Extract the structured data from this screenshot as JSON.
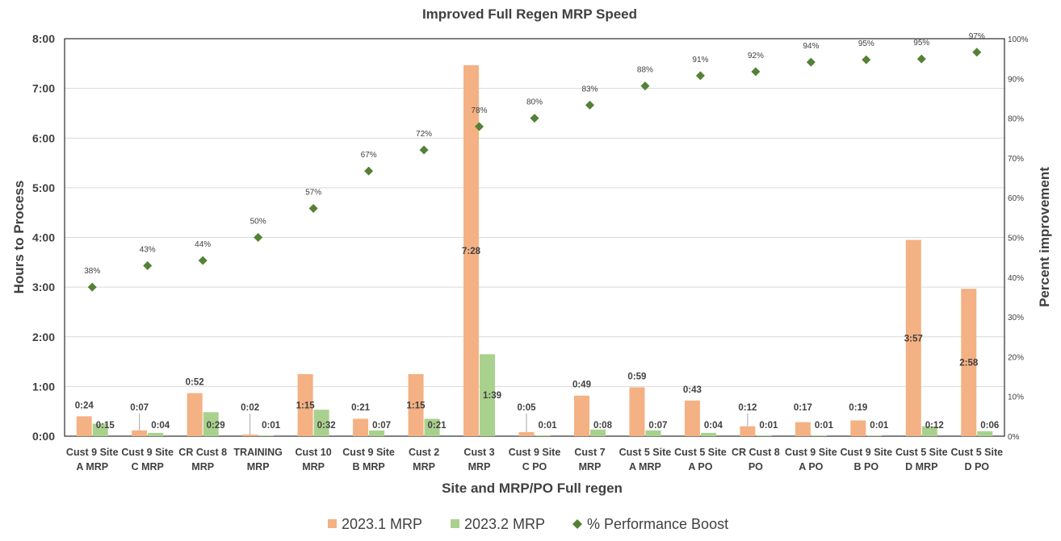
{
  "chart_data": {
    "type": "bar",
    "title": "Improved Full Regen MRP Speed",
    "xlabel": "Site and MRP/PO Full regen",
    "ylabel": "Hours  to Process",
    "y2label": "Percent improvement",
    "y_ticks": [
      "0:00",
      "1:00",
      "2:00",
      "3:00",
      "4:00",
      "5:00",
      "6:00",
      "7:00",
      "8:00"
    ],
    "y2_ticks": [
      "0%",
      "10%",
      "20%",
      "30%",
      "40%",
      "50%",
      "60%",
      "70%",
      "80%",
      "90%",
      "100%"
    ],
    "ylim": [
      0,
      8
    ],
    "y2lim": [
      0,
      100
    ],
    "categories": [
      [
        "Cust 9 Site",
        "A MRP"
      ],
      [
        "Cust 9 Site",
        "C MRP"
      ],
      [
        "CR Cust 8",
        "MRP"
      ],
      [
        "TRAINING",
        "MRP"
      ],
      [
        "Cust 10",
        "MRP"
      ],
      [
        "Cust 9 Site",
        "B MRP"
      ],
      [
        "Cust 2",
        "MRP"
      ],
      [
        "Cust 3",
        "MRP"
      ],
      [
        "Cust 9 Site",
        "C PO"
      ],
      [
        "Cust 7",
        "MRP"
      ],
      [
        "Cust 5 Site",
        "A MRP"
      ],
      [
        "Cust 5 Site",
        "A PO"
      ],
      [
        "CR Cust 8",
        "PO"
      ],
      [
        "Cust 9 Site",
        "A PO"
      ],
      [
        "Cust 9 Site",
        "B PO"
      ],
      [
        "Cust 5 Site",
        "D MRP"
      ],
      [
        "Cust 5 Site",
        "D PO"
      ]
    ],
    "series": [
      {
        "name": "2023.1 MRP",
        "type": "bar",
        "color": "#F4B183",
        "values": [
          0.4,
          0.1167,
          0.8667,
          0.0333,
          1.25,
          0.35,
          1.25,
          7.4667,
          0.0833,
          0.8167,
          0.9833,
          0.7167,
          0.2,
          0.2833,
          0.3167,
          3.95,
          2.9667
        ],
        "labels": [
          "0:24",
          "0:07",
          "0:52",
          "0:02",
          "1:15",
          "0:21",
          "1:15",
          "7:28",
          "0:05",
          "0:49",
          "0:59",
          "0:43",
          "0:12",
          "0:17",
          "0:19",
          "3:57",
          "2:58"
        ]
      },
      {
        "name": "2023.2 MRP",
        "type": "bar",
        "color": "#A9D18E",
        "values": [
          0.25,
          0.0667,
          0.4833,
          0.0167,
          0.5333,
          0.1167,
          0.35,
          1.65,
          0.0167,
          0.1333,
          0.1167,
          0.0667,
          0.0167,
          0.0167,
          0.0167,
          0.2,
          0.1
        ],
        "labels": [
          "0:15",
          "0:04",
          "0:29",
          "0:01",
          "0:32",
          "0:07",
          "0:21",
          "1:39",
          "0:01",
          "0:08",
          "0:07",
          "0:04",
          "0:01",
          "0:01",
          "0:01",
          "0:12",
          "0:06"
        ]
      },
      {
        "name": "% Performance Boost",
        "type": "scatter",
        "axis": "y2",
        "color": "#538135",
        "values": [
          37.5,
          42.9,
          44.2,
          50,
          57.3,
          66.7,
          72,
          77.9,
          80,
          83.3,
          88.1,
          90.7,
          91.7,
          94.1,
          94.7,
          94.9,
          96.6
        ],
        "labels": [
          "38%",
          "43%",
          "44%",
          "50%",
          "57%",
          "67%",
          "72%",
          "78%",
          "80%",
          "83%",
          "88%",
          "91%",
          "92%",
          "94%",
          "95%",
          "95%",
          "97%"
        ]
      }
    ],
    "legend": "bottom",
    "grid": true
  }
}
